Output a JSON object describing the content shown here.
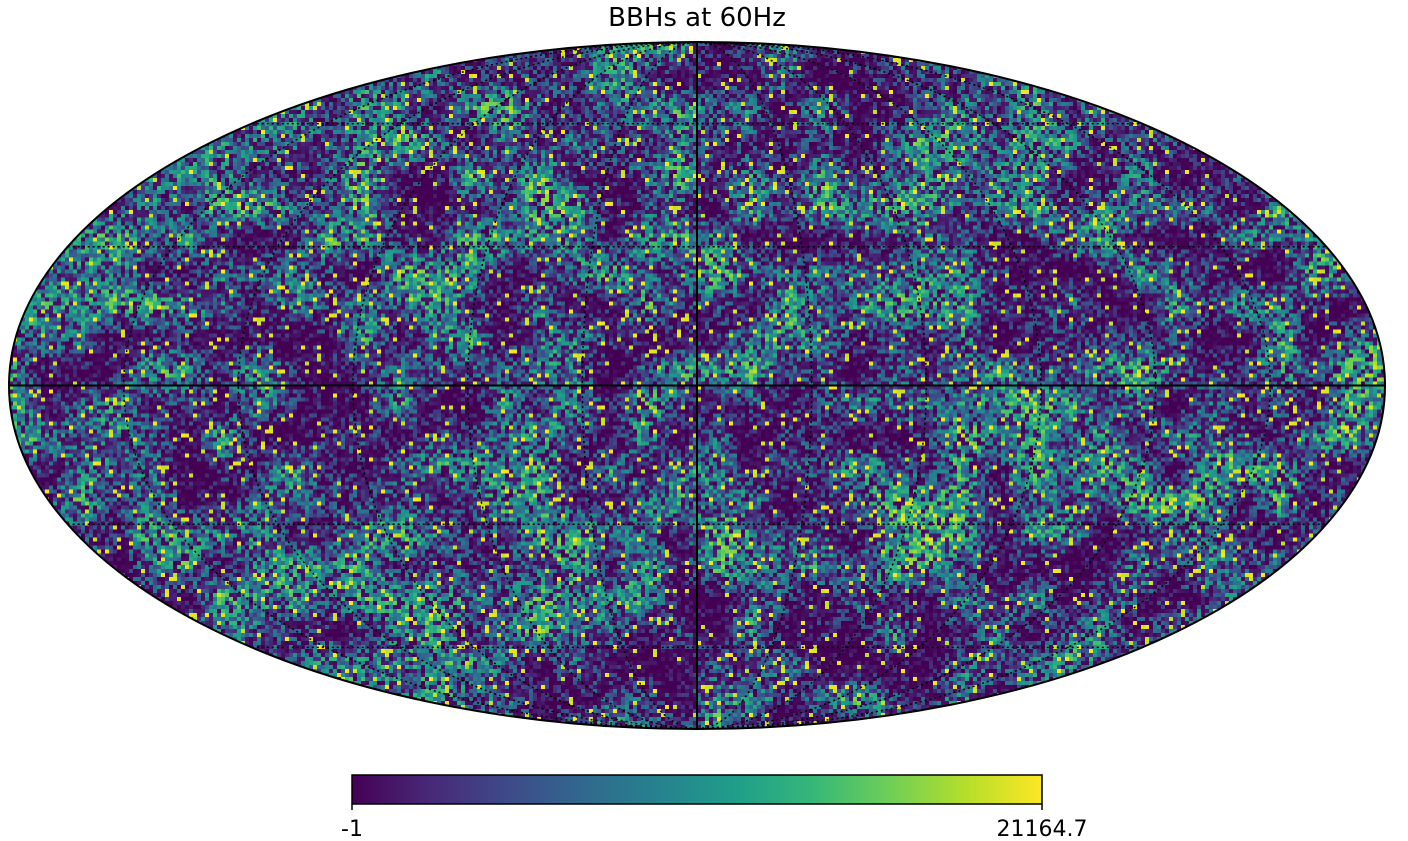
{
  "chart_data": {
    "type": "heatmap",
    "subtype": "mollweide-sky-map",
    "title": "BBHs at 60Hz",
    "colormap": "viridis",
    "colorbar": {
      "orientation": "horizontal",
      "min_label": "-1",
      "max_label": "21164.7",
      "vmin": -1,
      "vmax": 21164.7
    },
    "graticule": true,
    "meridian_step_deg": 30,
    "parallel_step_deg": 30,
    "xlabel": "",
    "ylabel": ""
  },
  "colors": {
    "viridis": [
      "#440154",
      "#482878",
      "#3e4989",
      "#31688e",
      "#26828e",
      "#1f9e89",
      "#35b779",
      "#6ece58",
      "#b5de2b",
      "#fde725"
    ]
  }
}
